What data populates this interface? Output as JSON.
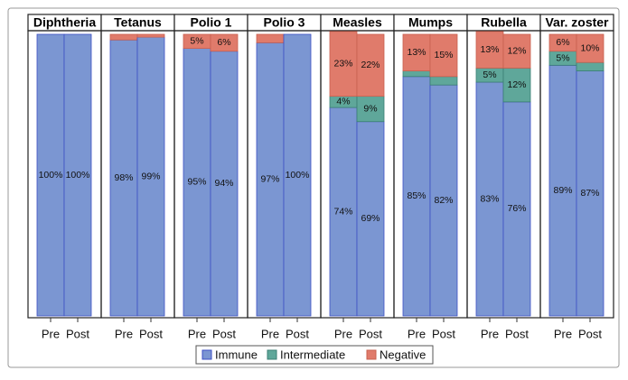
{
  "chart_data": {
    "type": "bar",
    "stacked": true,
    "legend": "bottom",
    "ylim": [
      0,
      100
    ],
    "categories": [
      "Pre",
      "Post"
    ],
    "series": [
      {
        "name": "Immune",
        "color": "#7b96d2"
      },
      {
        "name": "Intermediate",
        "color": "#5fa79a"
      },
      {
        "name": "Negative",
        "color": "#e07b6b"
      }
    ],
    "panels": [
      {
        "title": "Diphtheria",
        "values": [
          [
            100,
            100
          ],
          [
            0,
            0
          ],
          [
            0,
            0
          ]
        ],
        "value_labels": [
          [
            "100%",
            "100%"
          ],
          [
            null,
            null
          ],
          [
            null,
            null
          ]
        ]
      },
      {
        "title": "Tetanus",
        "values": [
          [
            98,
            99
          ],
          [
            0,
            0
          ],
          [
            2,
            1
          ]
        ],
        "value_labels": [
          [
            "98%",
            "99%"
          ],
          [
            null,
            null
          ],
          [
            null,
            null
          ]
        ]
      },
      {
        "title": "Polio 1",
        "values": [
          [
            95,
            94
          ],
          [
            0,
            0
          ],
          [
            5,
            6
          ]
        ],
        "value_labels": [
          [
            "95%",
            "94%"
          ],
          [
            null,
            null
          ],
          [
            "5%",
            "6%"
          ]
        ]
      },
      {
        "title": "Polio 3",
        "values": [
          [
            97,
            100
          ],
          [
            0,
            0
          ],
          [
            3,
            0
          ]
        ],
        "value_labels": [
          [
            "97%",
            "100%"
          ],
          [
            null,
            null
          ],
          [
            null,
            null
          ]
        ]
      },
      {
        "title": "Measles",
        "values": [
          [
            74,
            69
          ],
          [
            4,
            9
          ],
          [
            23,
            22
          ]
        ],
        "value_labels": [
          [
            "74%",
            "69%"
          ],
          [
            "4%",
            "9%"
          ],
          [
            "23%",
            "22%"
          ]
        ]
      },
      {
        "title": "Mumps",
        "values": [
          [
            85,
            82
          ],
          [
            2,
            3
          ],
          [
            13,
            15
          ]
        ],
        "value_labels": [
          [
            "85%",
            "82%"
          ],
          [
            null,
            null
          ],
          [
            "13%",
            "15%"
          ]
        ]
      },
      {
        "title": "Rubella",
        "values": [
          [
            83,
            76
          ],
          [
            5,
            12
          ],
          [
            13,
            12
          ]
        ],
        "value_labels": [
          [
            "83%",
            "76%"
          ],
          [
            "5%",
            "12%"
          ],
          [
            "13%",
            "12%"
          ]
        ]
      },
      {
        "title": "Var. zoster",
        "values": [
          [
            89,
            87
          ],
          [
            5,
            3
          ],
          [
            6,
            10
          ]
        ],
        "value_labels": [
          [
            "89%",
            "87%"
          ],
          [
            "5%",
            null
          ],
          [
            "6%",
            "10%"
          ]
        ]
      }
    ]
  }
}
